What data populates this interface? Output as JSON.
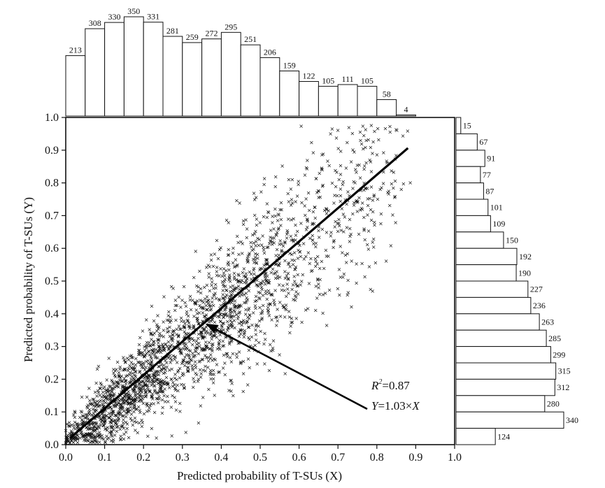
{
  "chart_data": {
    "type": "scatter",
    "title": "",
    "xlabel": "Predicted probability of T-SUs (X)",
    "ylabel": "Predicted probability of T-SUs (Y)",
    "xlim": [
      0,
      1.0
    ],
    "ylim": [
      0,
      1.0
    ],
    "xticks": [
      "0.0",
      "0.1",
      "0.2",
      "0.3",
      "0.4",
      "0.5",
      "0.6",
      "0.7",
      "0.8",
      "0.9",
      "1.0"
    ],
    "yticks": [
      "0.0",
      "0.1",
      "0.2",
      "0.3",
      "0.4",
      "0.5",
      "0.6",
      "0.7",
      "0.8",
      "0.9",
      "1.0"
    ],
    "grid": false,
    "fit_line": {
      "slope": 1.03,
      "x_range": [
        0.0,
        0.88
      ]
    },
    "annotation": {
      "r2_label": "R",
      "r2_sup": "2",
      "r2_value": "=0.87",
      "eq_y": "Y",
      "eq_mid": "=1.03×",
      "eq_x": "X",
      "arrow_to": [
        0.36,
        0.37
      ]
    },
    "top_histogram": {
      "bin_width": 0.05,
      "bin_starts": [
        0.0,
        0.05,
        0.1,
        0.15,
        0.2,
        0.25,
        0.3,
        0.35,
        0.4,
        0.45,
        0.5,
        0.55,
        0.6,
        0.65,
        0.7,
        0.75,
        0.8,
        0.85
      ],
      "counts": [
        213,
        308,
        330,
        350,
        331,
        281,
        259,
        272,
        295,
        251,
        206,
        159,
        122,
        105,
        111,
        105,
        58,
        4
      ]
    },
    "right_histogram": {
      "bin_width": 0.05,
      "bin_starts_from_top": [
        0.95,
        0.9,
        0.85,
        0.8,
        0.75,
        0.7,
        0.65,
        0.6,
        0.55,
        0.5,
        0.45,
        0.4,
        0.35,
        0.3,
        0.25,
        0.2,
        0.15,
        0.1,
        0.05,
        0.0
      ],
      "counts": [
        15,
        67,
        91,
        77,
        87,
        101,
        109,
        150,
        192,
        190,
        227,
        236,
        263,
        285,
        299,
        315,
        312,
        280,
        340,
        124
      ]
    },
    "scatter_marker": "×",
    "point_color": "#555555"
  }
}
